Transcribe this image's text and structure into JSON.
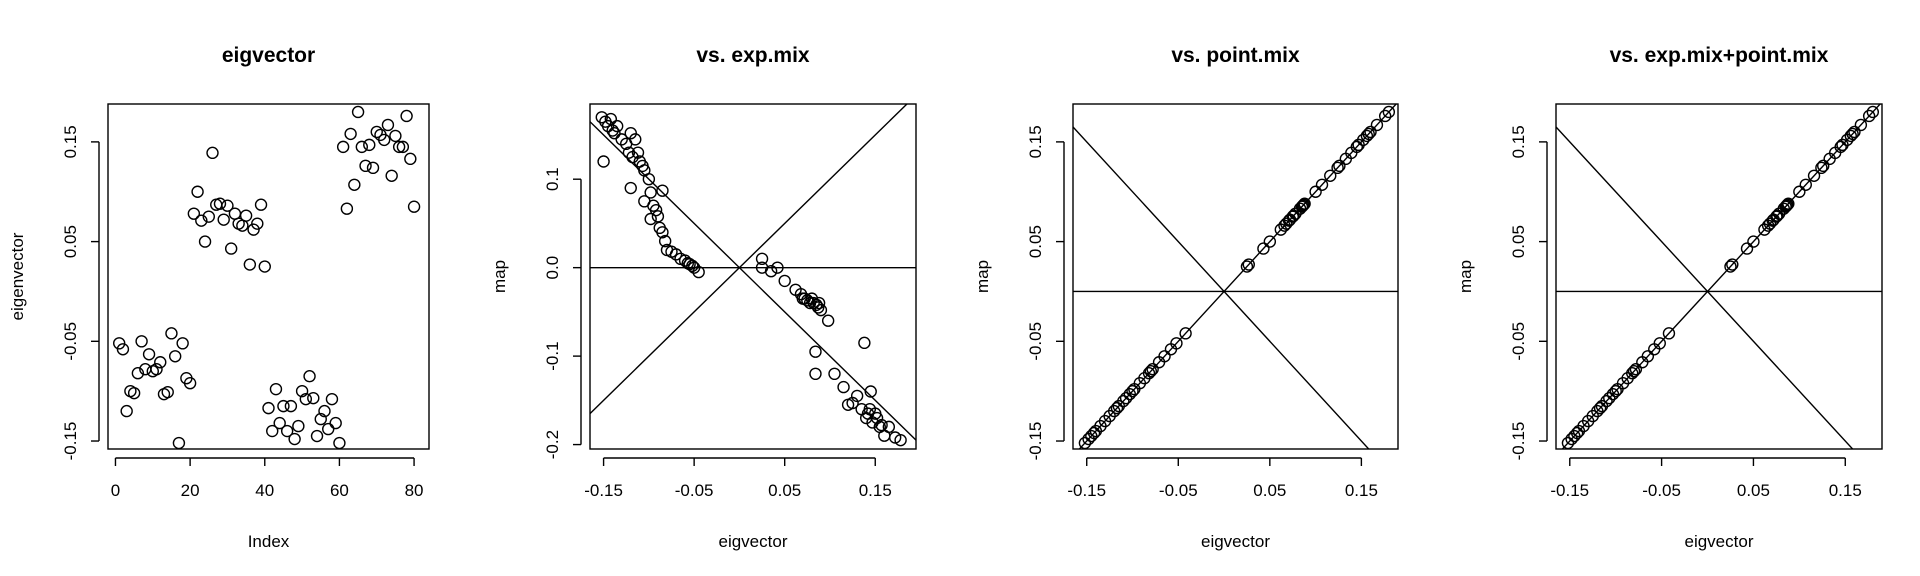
{
  "chart_data": [
    {
      "type": "scatter",
      "title": "eigvector",
      "xlabel": "Index",
      "ylabel": "eigenvector",
      "xlim": [
        -2,
        84
      ],
      "ylim": [
        -0.158,
        0.188
      ],
      "xticks": [
        0,
        20,
        40,
        60,
        80
      ],
      "xtick_labels": [
        "0",
        "20",
        "40",
        "60",
        "80"
      ],
      "yticks": [
        -0.15,
        -0.05,
        0.05,
        0.15
      ],
      "ytick_labels": [
        "-0.15",
        "-0.05",
        "0.05",
        "0.15"
      ],
      "ref_lines": [],
      "x": [
        1,
        2,
        3,
        4,
        5,
        6,
        7,
        8,
        9,
        10,
        11,
        12,
        13,
        14,
        15,
        16,
        17,
        18,
        19,
        20,
        21,
        22,
        23,
        24,
        25,
        26,
        27,
        28,
        29,
        30,
        31,
        32,
        33,
        34,
        35,
        36,
        37,
        38,
        39,
        40,
        41,
        42,
        43,
        44,
        45,
        46,
        47,
        48,
        49,
        50,
        51,
        52,
        53,
        54,
        55,
        56,
        57,
        58,
        59,
        60,
        61,
        62,
        63,
        64,
        65,
        66,
        67,
        68,
        69,
        70,
        71,
        72,
        73,
        74,
        75,
        76,
        77,
        78,
        79,
        80
      ],
      "y": [
        -0.052,
        -0.058,
        -0.12,
        -0.1,
        -0.102,
        -0.082,
        -0.05,
        -0.078,
        -0.063,
        -0.08,
        -0.078,
        -0.071,
        -0.103,
        -0.101,
        -0.042,
        -0.065,
        -0.152,
        -0.052,
        -0.087,
        -0.092,
        0.078,
        0.1,
        0.071,
        0.05,
        0.075,
        0.139,
        0.087,
        0.088,
        0.072,
        0.086,
        0.043,
        0.078,
        0.068,
        0.066,
        0.076,
        0.027,
        0.062,
        0.068,
        0.087,
        0.025,
        -0.117,
        -0.14,
        -0.098,
        -0.132,
        -0.115,
        -0.14,
        -0.115,
        -0.148,
        -0.135,
        -0.1,
        -0.108,
        -0.085,
        -0.107,
        -0.145,
        -0.128,
        -0.12,
        -0.138,
        -0.108,
        -0.132,
        -0.152,
        0.145,
        0.083,
        0.158,
        0.107,
        0.18,
        0.145,
        0.126,
        0.147,
        0.124,
        0.16,
        0.157,
        0.152,
        0.167,
        0.116,
        0.156,
        0.145,
        0.145,
        0.176,
        0.133,
        0.085
      ]
    },
    {
      "type": "scatter",
      "title": "vs. exp.mix",
      "xlabel": "eigvector",
      "ylabel": "map",
      "xlim": [
        -0.165,
        0.195
      ],
      "ylim": [
        -0.205,
        0.185
      ],
      "xticks": [
        -0.15,
        -0.05,
        0.05,
        0.15
      ],
      "xtick_labels": [
        "-0.15",
        "-0.05",
        "0.05",
        "0.15"
      ],
      "yticks": [
        0.1,
        0.0,
        -0.1,
        -0.2
      ],
      "ytick_labels": [
        "0.1",
        "0.0",
        "-0.1",
        "-0.2"
      ],
      "ref_lines": [
        {
          "a": 0,
          "b": 0
        },
        {
          "a": 0,
          "b": 1
        },
        {
          "a": 0,
          "b": -1
        }
      ],
      "x": [
        -0.152,
        -0.148,
        -0.145,
        -0.142,
        -0.14,
        -0.138,
        -0.135,
        -0.13,
        -0.125,
        -0.122,
        -0.12,
        -0.118,
        -0.115,
        -0.112,
        -0.11,
        -0.107,
        -0.105,
        -0.1,
        -0.098,
        -0.095,
        -0.092,
        -0.09,
        -0.088,
        -0.085,
        -0.082,
        -0.08,
        -0.075,
        -0.07,
        -0.065,
        -0.06,
        -0.057,
        -0.055,
        -0.052,
        -0.05,
        -0.045,
        -0.12,
        -0.15,
        -0.105,
        -0.098,
        -0.085,
        0.025,
        0.035,
        0.042,
        0.05,
        0.062,
        0.068,
        0.072,
        0.075,
        0.078,
        0.08,
        0.082,
        0.085,
        0.087,
        0.088,
        0.09,
        0.025,
        0.07,
        0.084,
        0.098,
        0.084,
        0.105,
        0.115,
        0.12,
        0.125,
        0.13,
        0.135,
        0.14,
        0.142,
        0.144,
        0.145,
        0.147,
        0.15,
        0.152,
        0.155,
        0.157,
        0.16,
        0.165,
        0.172,
        0.178,
        0.138
      ],
      "y": [
        0.17,
        0.165,
        0.16,
        0.168,
        0.155,
        0.152,
        0.16,
        0.145,
        0.14,
        0.13,
        0.152,
        0.125,
        0.145,
        0.13,
        0.12,
        0.115,
        0.11,
        0.1,
        0.085,
        0.07,
        0.065,
        0.058,
        0.045,
        0.04,
        0.03,
        0.02,
        0.018,
        0.015,
        0.01,
        0.008,
        0.005,
        0.004,
        0.002,
        0.0,
        -0.005,
        0.09,
        0.12,
        0.075,
        0.055,
        0.087,
        0.0,
        -0.004,
        0.0,
        -0.015,
        -0.025,
        -0.03,
        -0.035,
        -0.037,
        -0.04,
        -0.035,
        -0.04,
        -0.042,
        -0.045,
        -0.04,
        -0.048,
        0.01,
        -0.035,
        -0.095,
        -0.06,
        -0.12,
        -0.12,
        -0.135,
        -0.155,
        -0.153,
        -0.145,
        -0.16,
        -0.17,
        -0.165,
        -0.16,
        -0.14,
        -0.175,
        -0.165,
        -0.17,
        -0.18,
        -0.178,
        -0.19,
        -0.18,
        -0.192,
        -0.195,
        -0.085
      ]
    },
    {
      "type": "scatter",
      "title": "vs. point.mix",
      "xlabel": "eigvector",
      "ylabel": "map",
      "xlim": [
        -0.165,
        0.19
      ],
      "ylim": [
        -0.158,
        0.188
      ],
      "xticks": [
        -0.15,
        -0.05,
        0.05,
        0.15
      ],
      "xtick_labels": [
        "-0.15",
        "-0.05",
        "0.05",
        "0.15"
      ],
      "yticks": [
        -0.15,
        -0.05,
        0.05,
        0.15
      ],
      "ytick_labels": [
        "-0.15",
        "-0.05",
        "0.05",
        "0.15"
      ],
      "ref_lines": [
        {
          "a": 0,
          "b": 0
        },
        {
          "a": 0,
          "b": 1
        },
        {
          "a": 0,
          "b": -1
        }
      ],
      "x": [
        -0.152,
        -0.148,
        -0.145,
        -0.142,
        -0.14,
        -0.135,
        -0.13,
        -0.125,
        -0.12,
        -0.117,
        -0.115,
        -0.11,
        -0.107,
        -0.103,
        -0.1,
        -0.098,
        -0.092,
        -0.087,
        -0.082,
        -0.08,
        -0.078,
        -0.071,
        -0.065,
        -0.058,
        -0.052,
        -0.042,
        0.025,
        0.027,
        0.043,
        0.05,
        0.062,
        0.066,
        0.068,
        0.071,
        0.072,
        0.075,
        0.076,
        0.078,
        0.083,
        0.085,
        0.086,
        0.087,
        0.088,
        0.1,
        0.107,
        0.116,
        0.124,
        0.126,
        0.133,
        0.139,
        0.145,
        0.147,
        0.152,
        0.156,
        0.158,
        0.16,
        0.167,
        0.176,
        0.18
      ],
      "y": [
        -0.152,
        -0.148,
        -0.145,
        -0.142,
        -0.14,
        -0.135,
        -0.13,
        -0.125,
        -0.12,
        -0.117,
        -0.115,
        -0.11,
        -0.107,
        -0.103,
        -0.1,
        -0.098,
        -0.092,
        -0.087,
        -0.082,
        -0.08,
        -0.078,
        -0.071,
        -0.065,
        -0.058,
        -0.052,
        -0.042,
        0.025,
        0.027,
        0.043,
        0.05,
        0.062,
        0.066,
        0.068,
        0.071,
        0.072,
        0.075,
        0.076,
        0.078,
        0.083,
        0.085,
        0.086,
        0.087,
        0.088,
        0.1,
        0.107,
        0.116,
        0.124,
        0.126,
        0.133,
        0.139,
        0.145,
        0.147,
        0.152,
        0.156,
        0.158,
        0.16,
        0.167,
        0.176,
        0.18
      ]
    },
    {
      "type": "scatter",
      "title": "vs. exp.mix+point.mix",
      "xlabel": "eigvector",
      "ylabel": "map",
      "xlim": [
        -0.165,
        0.19
      ],
      "ylim": [
        -0.158,
        0.188
      ],
      "xticks": [
        -0.15,
        -0.05,
        0.05,
        0.15
      ],
      "xtick_labels": [
        "-0.15",
        "-0.05",
        "0.05",
        "0.15"
      ],
      "yticks": [
        -0.15,
        -0.05,
        0.05,
        0.15
      ],
      "ytick_labels": [
        "-0.15",
        "-0.05",
        "0.05",
        "0.15"
      ],
      "ref_lines": [
        {
          "a": 0,
          "b": 0
        },
        {
          "a": 0,
          "b": 1
        },
        {
          "a": 0,
          "b": -1
        }
      ],
      "x": [
        -0.152,
        -0.148,
        -0.145,
        -0.142,
        -0.14,
        -0.135,
        -0.13,
        -0.125,
        -0.12,
        -0.117,
        -0.115,
        -0.11,
        -0.107,
        -0.103,
        -0.1,
        -0.098,
        -0.092,
        -0.087,
        -0.082,
        -0.08,
        -0.078,
        -0.071,
        -0.065,
        -0.058,
        -0.052,
        -0.042,
        0.025,
        0.027,
        0.043,
        0.05,
        0.062,
        0.066,
        0.068,
        0.071,
        0.072,
        0.075,
        0.076,
        0.078,
        0.083,
        0.085,
        0.086,
        0.087,
        0.088,
        0.1,
        0.107,
        0.116,
        0.124,
        0.126,
        0.133,
        0.139,
        0.145,
        0.147,
        0.152,
        0.156,
        0.158,
        0.16,
        0.167,
        0.176,
        0.18
      ],
      "y": [
        -0.152,
        -0.148,
        -0.145,
        -0.142,
        -0.14,
        -0.135,
        -0.13,
        -0.125,
        -0.12,
        -0.117,
        -0.115,
        -0.11,
        -0.107,
        -0.103,
        -0.1,
        -0.098,
        -0.092,
        -0.087,
        -0.082,
        -0.08,
        -0.078,
        -0.071,
        -0.065,
        -0.058,
        -0.052,
        -0.042,
        0.025,
        0.027,
        0.043,
        0.05,
        0.062,
        0.066,
        0.068,
        0.071,
        0.072,
        0.075,
        0.076,
        0.078,
        0.083,
        0.085,
        0.086,
        0.087,
        0.088,
        0.1,
        0.107,
        0.116,
        0.124,
        0.126,
        0.133,
        0.139,
        0.145,
        0.147,
        0.152,
        0.156,
        0.158,
        0.16,
        0.167,
        0.176,
        0.18
      ]
    }
  ]
}
